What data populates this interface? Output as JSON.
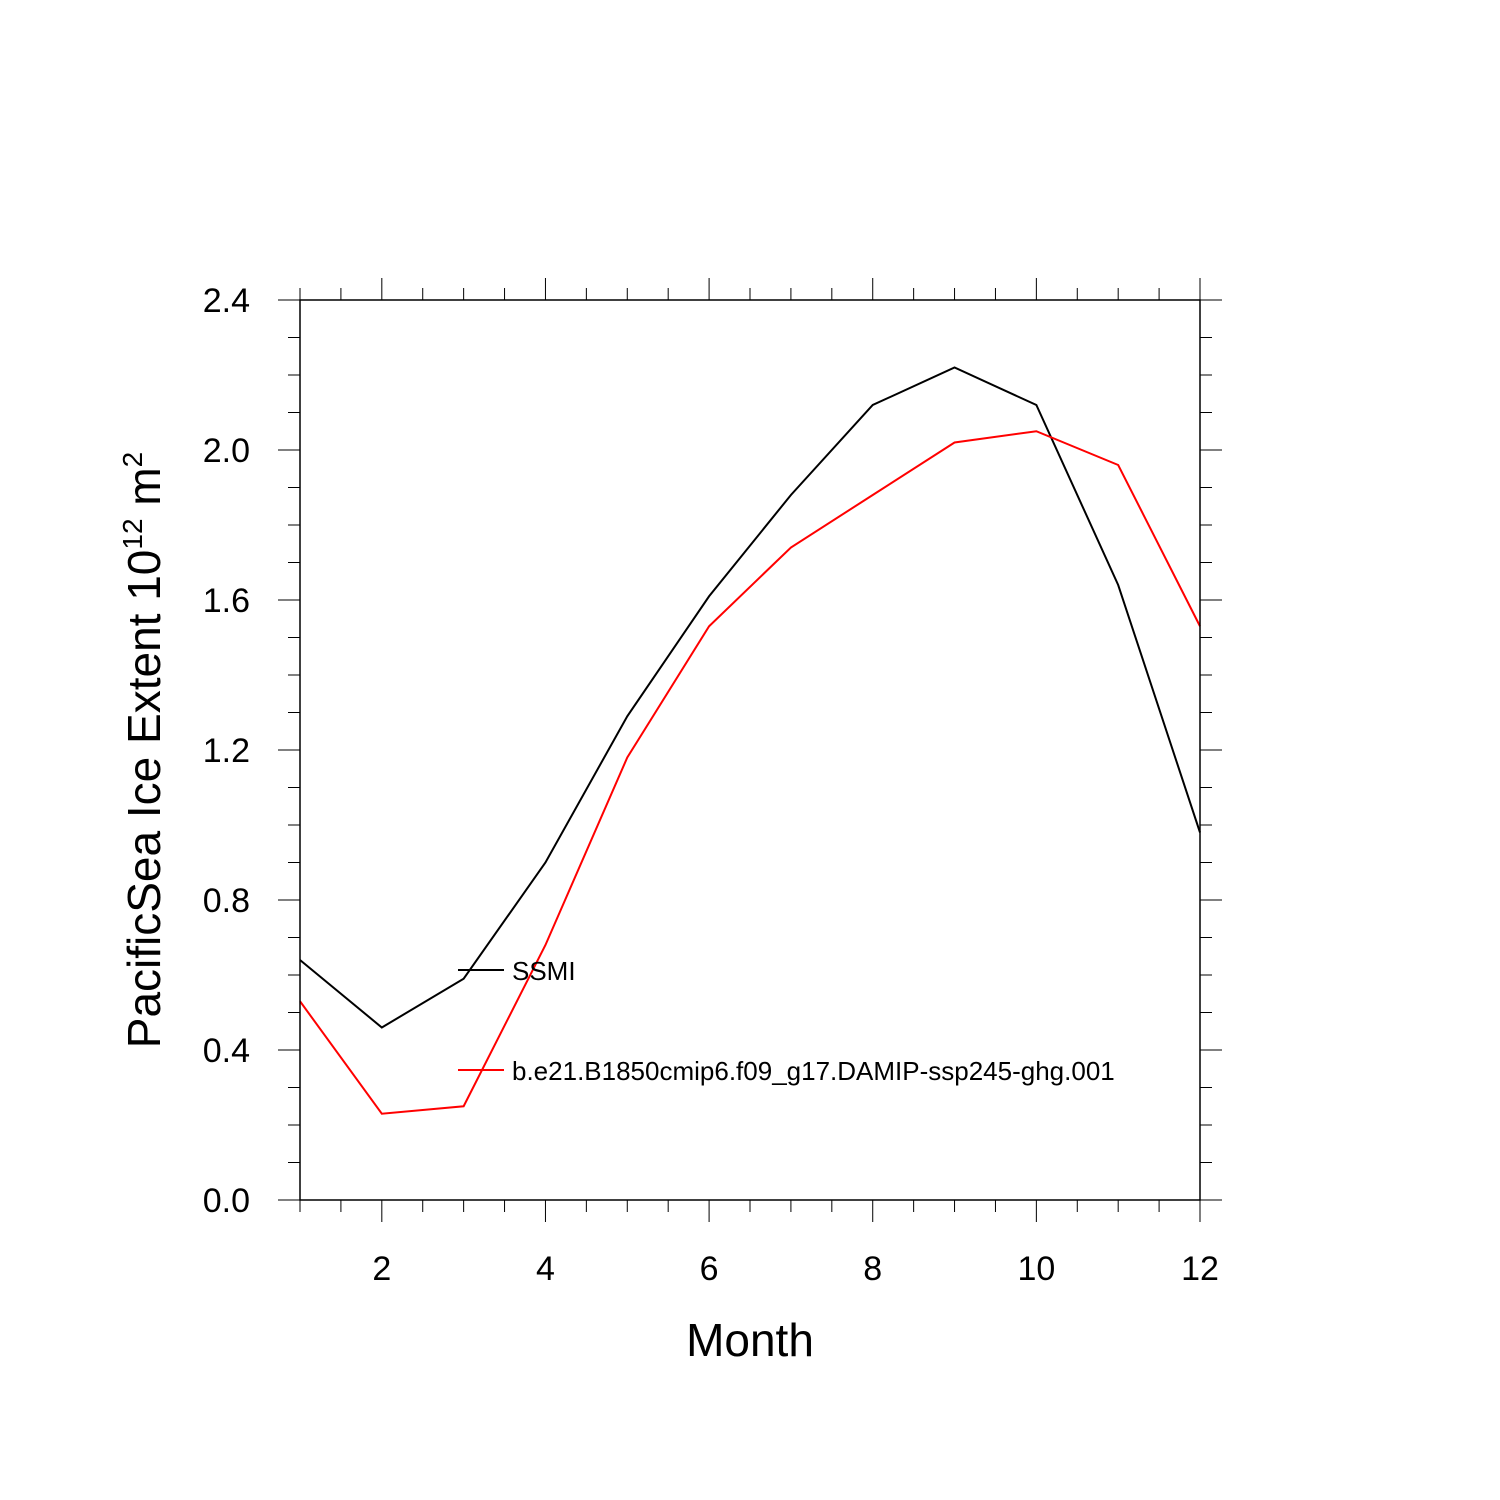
{
  "chart_data": {
    "type": "line",
    "xlabel": "Month",
    "ylabel": "PacificSea Ice Extent 10",
    "ylabel_sup1": "12",
    "ylabel_mid": " m",
    "ylabel_sup2": "2",
    "xlim": [
      1,
      12
    ],
    "ylim": [
      0.0,
      2.4
    ],
    "x_major_ticks": [
      2,
      4,
      6,
      8,
      10,
      12
    ],
    "x_tick_labels": [
      "2",
      "4",
      "6",
      "8",
      "10",
      "12"
    ],
    "y_major_ticks": [
      0.0,
      0.4,
      0.8,
      1.2,
      1.6,
      2.0,
      2.4
    ],
    "y_tick_labels": [
      "0.0",
      "0.4",
      "0.8",
      "1.2",
      "1.6",
      "2.0",
      "2.4"
    ],
    "grid": false,
    "legend_position": "inside-left",
    "x": [
      1,
      2,
      3,
      4,
      5,
      6,
      7,
      8,
      9,
      10,
      11,
      12
    ],
    "series": [
      {
        "name": "SSMI",
        "color": "#000000",
        "values": [
          0.64,
          0.46,
          0.59,
          0.9,
          1.29,
          1.61,
          1.88,
          2.12,
          2.22,
          2.12,
          1.64,
          0.98
        ]
      },
      {
        "name": "b.e21.B1850cmip6.f09_g17.DAMIP-ssp245-ghg.001",
        "color": "#ff0000",
        "values": [
          0.53,
          0.23,
          0.25,
          0.68,
          1.18,
          1.53,
          1.74,
          1.88,
          2.02,
          2.05,
          1.96,
          1.53
        ]
      }
    ]
  }
}
